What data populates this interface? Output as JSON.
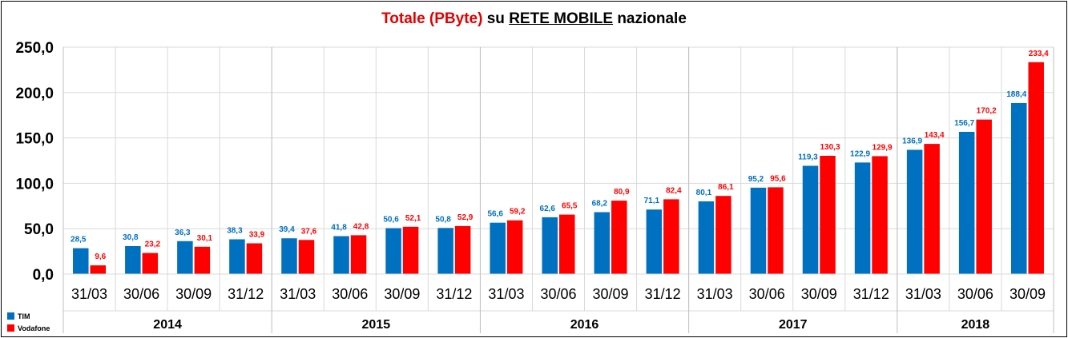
{
  "title": {
    "part1": "Totale",
    "part2": "(PByte)",
    "part3": "su",
    "part4": "RETE MOBILE",
    "part5": "nazionale"
  },
  "colors": {
    "tim": "#0070c0",
    "vodafone": "#ff0000",
    "grid": "#d9d9d9",
    "title_accent": "#e00000"
  },
  "legend": [
    {
      "name": "TIM",
      "color": "#0070c0"
    },
    {
      "name": "Vodafone",
      "color": "#ff0000"
    }
  ],
  "chart_data": {
    "type": "bar",
    "title": "Totale (PByte) su RETE MOBILE nazionale",
    "ylim": [
      0,
      250
    ],
    "yticks": [
      "0,0",
      "50,0",
      "100,0",
      "150,0",
      "200,0",
      "250,0"
    ],
    "ytick_values": [
      0,
      50,
      100,
      150,
      200,
      250
    ],
    "grid": true,
    "legend_position": "bottom-left",
    "categories": [
      "31/03",
      "30/06",
      "30/09",
      "31/12",
      "31/03",
      "30/06",
      "30/09",
      "31/12",
      "31/03",
      "30/06",
      "30/09",
      "31/12",
      "31/03",
      "30/06",
      "30/09",
      "31/12",
      "31/03",
      "30/06",
      "30/09"
    ],
    "years": [
      {
        "label": "2014",
        "count": 4
      },
      {
        "label": "2015",
        "count": 4
      },
      {
        "label": "2016",
        "count": 4
      },
      {
        "label": "2017",
        "count": 4
      },
      {
        "label": "2018",
        "count": 3
      }
    ],
    "series": [
      {
        "name": "TIM",
        "color": "#0070c0",
        "values": [
          28.5,
          30.8,
          36.3,
          38.3,
          39.4,
          41.8,
          50.6,
          50.8,
          56.6,
          62.6,
          68.2,
          71.1,
          80.1,
          95.2,
          119.3,
          122.9,
          136.9,
          156.7,
          188.4
        ],
        "labels": [
          "28,5",
          "30,8",
          "36,3",
          "38,3",
          "39,4",
          "41,8",
          "50,6",
          "50,8",
          "56,6",
          "62,6",
          "68,2",
          "71,1",
          "80,1",
          "95,2",
          "119,3",
          "122,9",
          "136,9",
          "156,7",
          "188,4"
        ]
      },
      {
        "name": "Vodafone",
        "color": "#ff0000",
        "values": [
          9.6,
          23.2,
          30.1,
          33.9,
          37.6,
          42.8,
          52.1,
          52.9,
          59.2,
          65.5,
          80.9,
          82.4,
          86.1,
          95.6,
          130.3,
          129.9,
          143.4,
          170.2,
          233.4
        ],
        "labels": [
          "9,6",
          "23,2",
          "30,1",
          "33,9",
          "37,6",
          "42,8",
          "52,1",
          "52,9",
          "59,2",
          "65,5",
          "80,9",
          "82,4",
          "86,1",
          "95,6",
          "130,3",
          "129,9",
          "143,4",
          "170,2",
          "233,4"
        ]
      }
    ]
  }
}
